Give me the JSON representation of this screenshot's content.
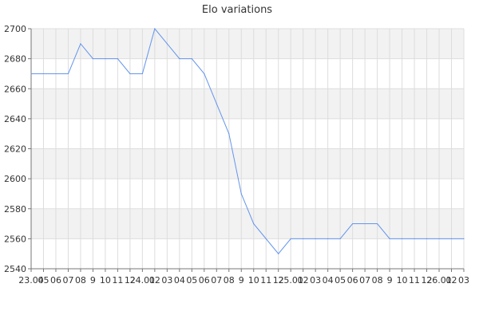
{
  "chart_data": {
    "type": "line",
    "title": "Elo variations",
    "xlabel": "",
    "ylabel": "",
    "ylim": [
      2540,
      2700
    ],
    "yticks": [
      2540,
      2560,
      2580,
      2600,
      2620,
      2640,
      2660,
      2680,
      2700
    ],
    "grid": true,
    "legend": "none",
    "x": [
      "23.04",
      "05",
      "06",
      "07",
      "08",
      "09",
      "10",
      "11",
      "12",
      "24.01",
      "02",
      "03",
      "04",
      "05",
      "06",
      "07",
      "08",
      "09",
      "10",
      "11",
      "12",
      "25.01",
      "02",
      "03",
      "04",
      "05",
      "06",
      "07",
      "08",
      "09",
      "10",
      "11",
      "12",
      "26.01",
      "02",
      "03"
    ],
    "x_tick_labels": [
      "23.04",
      "05",
      "06",
      "07",
      "08",
      "9",
      "10",
      "11",
      "12",
      "24.01",
      "02",
      "03",
      "04",
      "05",
      "06",
      "07",
      "08",
      "9",
      "10",
      "11",
      "12",
      "25.01",
      "02",
      "03",
      "04",
      "05",
      "06",
      "07",
      "08",
      "9",
      "10",
      "11",
      "12",
      "26.01",
      "02",
      "03"
    ],
    "series": [
      {
        "values": [
          2670,
          2670,
          2670,
          2670,
          2690,
          2680,
          2680,
          2680,
          2670,
          2670,
          2700,
          2690,
          2680,
          2680,
          2670,
          2650,
          2630,
          2590,
          2570,
          2560,
          2550,
          2560,
          2560,
          2560,
          2560,
          2560,
          2570,
          2570,
          2570,
          2560,
          2560,
          2560,
          2560,
          2560,
          2560,
          2560
        ],
        "color": "#6495ed"
      }
    ],
    "band_colors": [
      "#f2f2f2",
      "#ffffff"
    ],
    "grid_color": "#dddddd",
    "axis_color": "#777777"
  }
}
